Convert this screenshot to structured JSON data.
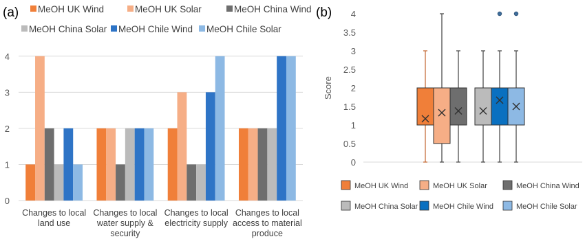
{
  "chart_data": [
    {
      "type": "bar",
      "panel_label": "(a)",
      "categories": [
        "Changes to local\nland use",
        "Changes to local\nwater supply &\nsecurity",
        "Changes to local\nelectricity supply",
        "Changes to local\naccess to material\nproduce"
      ],
      "series": [
        {
          "name": "MeOH UK Wind",
          "color": "#F07F39",
          "values": [
            1,
            2,
            2,
            2
          ]
        },
        {
          "name": "MeOH UK Solar",
          "color": "#F6AE86",
          "values": [
            4,
            2,
            3,
            2
          ]
        },
        {
          "name": "MeOH China Wind",
          "color": "#6E6E6E",
          "values": [
            2,
            1,
            1,
            2
          ]
        },
        {
          "name": "MeOH China Solar",
          "color": "#BBBBBB",
          "values": [
            1,
            2,
            1,
            2
          ]
        },
        {
          "name": "MeOH Chile Wind",
          "color": "#2E74C6",
          "values": [
            2,
            2,
            3,
            4
          ]
        },
        {
          "name": "MeOH Chile Solar",
          "color": "#8DB9E4",
          "values": [
            1,
            2,
            4,
            4
          ]
        }
      ],
      "yticks": [
        "0",
        "1",
        "2",
        "3",
        "4"
      ],
      "ylim": [
        0,
        4.3
      ],
      "grid": true,
      "legend_position": "top"
    },
    {
      "type": "box",
      "panel_label": "(b)",
      "ylabel": "Score",
      "yticks": [
        "0",
        "0.5",
        "1",
        "1.5",
        "2",
        "2.5",
        "3",
        "3.5",
        "4"
      ],
      "ylim": [
        0,
        4
      ],
      "grid": false,
      "legend_position": "bottom",
      "boxes": [
        {
          "name": "MeOH UK Wind",
          "color": "#F07F39",
          "min": 0,
          "q1": 1,
          "median": 1,
          "q3": 2,
          "max": 3,
          "mean": 1.17,
          "outliers": []
        },
        {
          "name": "MeOH UK Solar",
          "color": "#F6AE86",
          "min": 0,
          "q1": 0.5,
          "median": 2,
          "q3": 2,
          "max": 4,
          "mean": 1.33,
          "outliers": []
        },
        {
          "name": "MeOH China Wind",
          "color": "#6E6E6E",
          "min": 0,
          "q1": 1,
          "median": 2,
          "q3": 2,
          "max": 3,
          "mean": 1.38,
          "outliers": []
        },
        {
          "name": "MeOH China Solar",
          "color": "#BBBBBB",
          "min": 0,
          "q1": 1,
          "median": 2,
          "q3": 2,
          "max": 3,
          "mean": 1.38,
          "outliers": []
        },
        {
          "name": "MeOH Chile Wind",
          "color": "#0A70C0",
          "min": 0,
          "q1": 1,
          "median": 2,
          "q3": 2,
          "max": 3,
          "mean": 1.67,
          "outliers": [
            4
          ]
        },
        {
          "name": "MeOH Chile Solar",
          "color": "#8DB9E4",
          "min": 0,
          "q1": 1,
          "median": 1,
          "q3": 2,
          "max": 3,
          "mean": 1.5,
          "outliers": [
            4
          ]
        }
      ]
    }
  ]
}
